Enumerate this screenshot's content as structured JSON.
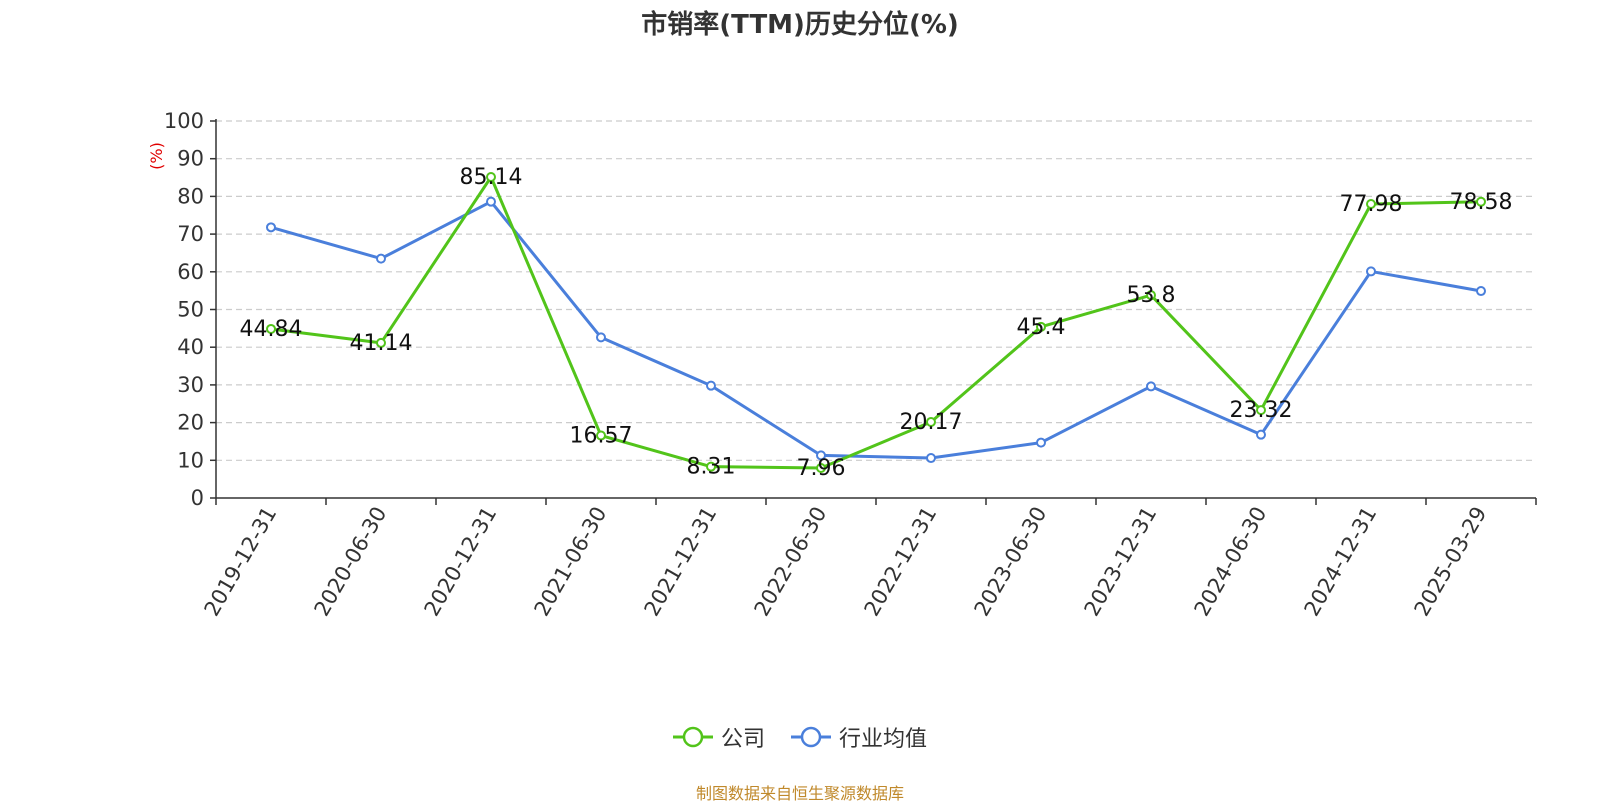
{
  "chart_data": {
    "type": "line",
    "title": "市销率(TTM)历史分位(%)",
    "ylabel": "(%)",
    "ylim": [
      0,
      100
    ],
    "yticks": [
      "0",
      "10",
      "20",
      "30",
      "40",
      "50",
      "60",
      "70",
      "80",
      "90",
      "100"
    ],
    "categories": [
      "2019-12-31",
      "2020-06-30",
      "2020-12-31",
      "2021-06-30",
      "2021-12-31",
      "2022-06-30",
      "2022-12-31",
      "2023-06-30",
      "2023-12-31",
      "2024-06-30",
      "2024-12-31",
      "2025-03-29"
    ],
    "series": [
      {
        "name": "公司",
        "color": "#52c41a",
        "values": [
          44.84,
          41.14,
          85.14,
          16.57,
          8.31,
          7.96,
          20.17,
          45.4,
          53.8,
          23.32,
          77.98,
          78.58
        ],
        "labels": [
          "44.84",
          "41.14",
          "85.14",
          "16.57",
          "8.31",
          "7.96",
          "20.17",
          "45.4",
          "53.8",
          "23.32",
          "77.98",
          "78.58"
        ]
      },
      {
        "name": "行业均值",
        "color": "#4a7fdb",
        "values": [
          71.8,
          63.5,
          78.6,
          42.6,
          29.8,
          11.3,
          10.6,
          14.7,
          29.6,
          16.8,
          60.1,
          54.9
        ]
      }
    ],
    "grid": true,
    "legend": "bottom-center"
  },
  "source": "制图数据来自恒生聚源数据库"
}
